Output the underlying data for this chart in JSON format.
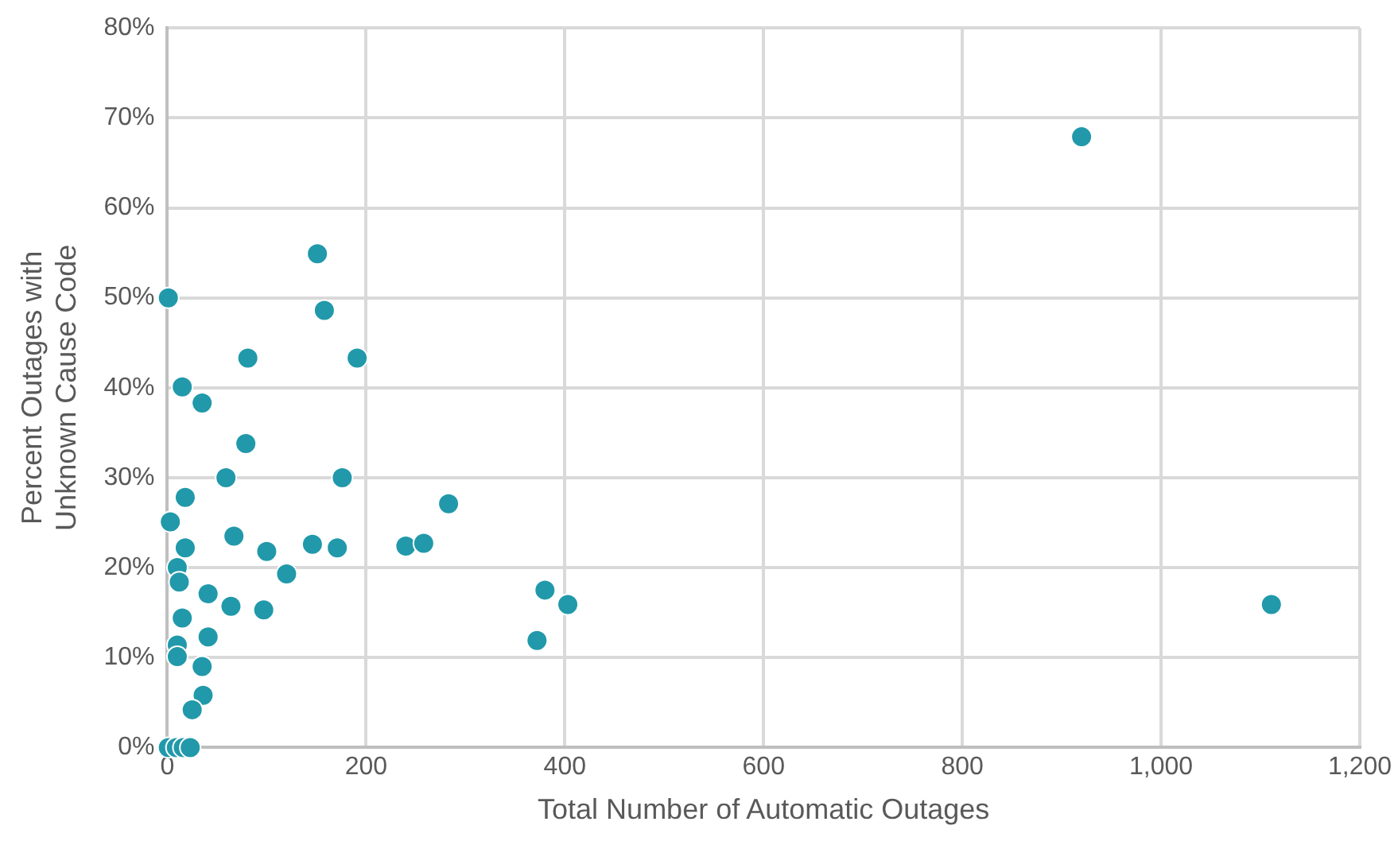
{
  "chart_data": {
    "type": "scatter",
    "xlabel": "Total Number of Automatic Outages",
    "ylabel": "Percent Outages with Unknown Cause Code",
    "x": [
      1,
      151,
      158,
      191,
      81,
      15,
      35,
      79,
      59,
      176,
      283,
      18,
      3,
      67,
      18,
      146,
      171,
      240,
      258,
      100,
      120,
      10,
      12,
      41,
      64,
      97,
      380,
      403,
      372,
      1111,
      920,
      15,
      41,
      10,
      10,
      35,
      36,
      25,
      1,
      9,
      16,
      23
    ],
    "series": [
      {
        "color": "#2199aa",
        "values": [
          50,
          54.9,
          48.6,
          43.3,
          43.3,
          40.1,
          38.3,
          33.8,
          30,
          30,
          27.1,
          27.8,
          25.1,
          23.5,
          22.2,
          22.6,
          22.2,
          22.4,
          22.7,
          21.8,
          19.3,
          20,
          18.4,
          17.1,
          15.7,
          15.3,
          17.5,
          15.9,
          11.9,
          15.9,
          67.9,
          14.4,
          12.3,
          11.4,
          10.1,
          9,
          5.8,
          4.2,
          0,
          0,
          0,
          0
        ]
      }
    ],
    "xlim": [
      0,
      1200
    ],
    "xticks": [
      {
        "value": 0,
        "label": "0"
      },
      {
        "value": 200,
        "label": "200"
      },
      {
        "value": 400,
        "label": "400"
      },
      {
        "value": 600,
        "label": "600"
      },
      {
        "value": 800,
        "label": "800"
      },
      {
        "value": 1000,
        "label": "1,000"
      },
      {
        "value": 1200,
        "label": "1,200"
      }
    ],
    "ylim": [
      0,
      80
    ],
    "yticks": [
      {
        "value": 0,
        "label": "0%"
      },
      {
        "value": 10,
        "label": "10%"
      },
      {
        "value": 20,
        "label": "20%"
      },
      {
        "value": 30,
        "label": "30%"
      },
      {
        "value": 40,
        "label": "40%"
      },
      {
        "value": 50,
        "label": "50%"
      },
      {
        "value": 60,
        "label": "60%"
      },
      {
        "value": 70,
        "label": "70%"
      },
      {
        "value": 80,
        "label": "80%"
      }
    ],
    "grid": true,
    "legend": false,
    "marker": "circle"
  }
}
